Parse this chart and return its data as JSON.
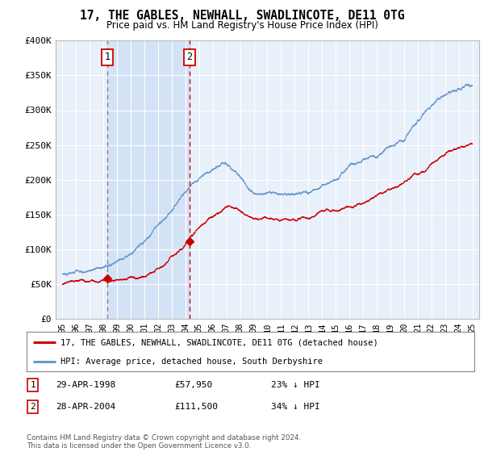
{
  "title": "17, THE GABLES, NEWHALL, SWADLINCOTE, DE11 0TG",
  "subtitle": "Price paid vs. HM Land Registry's House Price Index (HPI)",
  "ylim": [
    0,
    400000
  ],
  "yticks": [
    0,
    50000,
    100000,
    150000,
    200000,
    250000,
    300000,
    350000,
    400000
  ],
  "ytick_labels": [
    "£0",
    "£50K",
    "£100K",
    "£150K",
    "£200K",
    "£250K",
    "£300K",
    "£350K",
    "£400K"
  ],
  "x_start_year": 1995,
  "x_end_year": 2025,
  "background_color": "#ffffff",
  "plot_bg_color": "#e8f0fa",
  "grid_color": "#ffffff",
  "transaction1": {
    "date_label": "29-APR-1998",
    "year": 1998.3,
    "price": 57950,
    "label": "23% ↓ HPI"
  },
  "transaction2": {
    "date_label": "28-APR-2004",
    "year": 2004.3,
    "price": 111500,
    "label": "34% ↓ HPI"
  },
  "legend_label_red": "17, THE GABLES, NEWHALL, SWADLINCOTE, DE11 0TG (detached house)",
  "legend_label_blue": "HPI: Average price, detached house, South Derbyshire",
  "footer": "Contains HM Land Registry data © Crown copyright and database right 2024.\nThis data is licensed under the Open Government Licence v3.0.",
  "red_color": "#cc0000",
  "blue_color": "#6699cc",
  "vline1_color": "#888888",
  "vline2_color": "#cc0000",
  "shade_color": "#ccddf5"
}
